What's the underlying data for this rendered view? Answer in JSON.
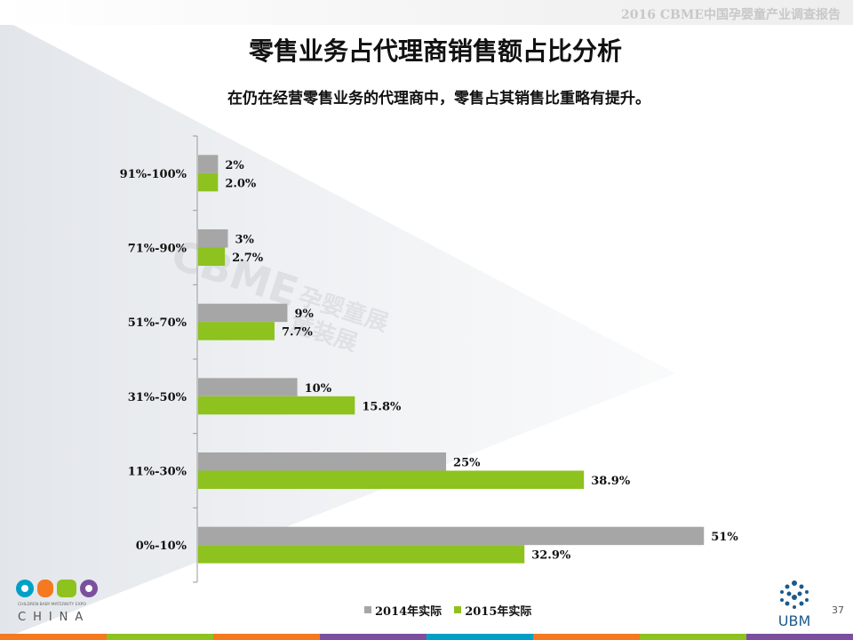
{
  "header": {
    "report_title": "2016 CBME中国孕婴童产业调查报告"
  },
  "title": "零售业务占代理商销售额占比分析",
  "subtitle": "在仍在经营零售业务的代理商中，零售占其销售比重略有提升。",
  "chart_data": {
    "type": "bar",
    "orientation": "horizontal",
    "categories": [
      "91%-100%",
      "71%-90%",
      "51%-70%",
      "31%-50%",
      "11%-30%",
      "0%-10%"
    ],
    "series": [
      {
        "name": "2014年实际",
        "color": "#a6a6a6",
        "values": [
          2,
          3,
          9,
          10,
          25,
          51
        ],
        "labels": [
          "2%",
          "3%",
          "9%",
          "10%",
          "25%",
          "51%"
        ]
      },
      {
        "name": "2015年实际",
        "color": "#8dc21f",
        "values": [
          2.0,
          2.7,
          7.7,
          15.8,
          38.9,
          32.9
        ],
        "labels": [
          "2.0%",
          "2.7%",
          "7.7%",
          "15.8%",
          "38.9%",
          "32.9%"
        ]
      }
    ],
    "title": "",
    "xlabel": "",
    "ylabel": "",
    "xlim": [
      0,
      52.5
    ],
    "grid": false,
    "legend_position": "bottom"
  },
  "logos": {
    "left": {
      "text": "CBME",
      "subtext": "CHINA",
      "tagline": "CHILDREN·BABY·MATERNITY EXPO"
    },
    "right": {
      "text": "UBM"
    }
  },
  "watermark": {
    "text": "CBME",
    "line1": "孕婴童展",
    "line2": "童装展"
  },
  "page_number": "37",
  "bottom_bar_colors": [
    "#f47920",
    "#8dc21f",
    "#f47920",
    "#7b4f9e",
    "#00a0c6",
    "#f47920",
    "#8dc21f",
    "#7b4f9e"
  ]
}
